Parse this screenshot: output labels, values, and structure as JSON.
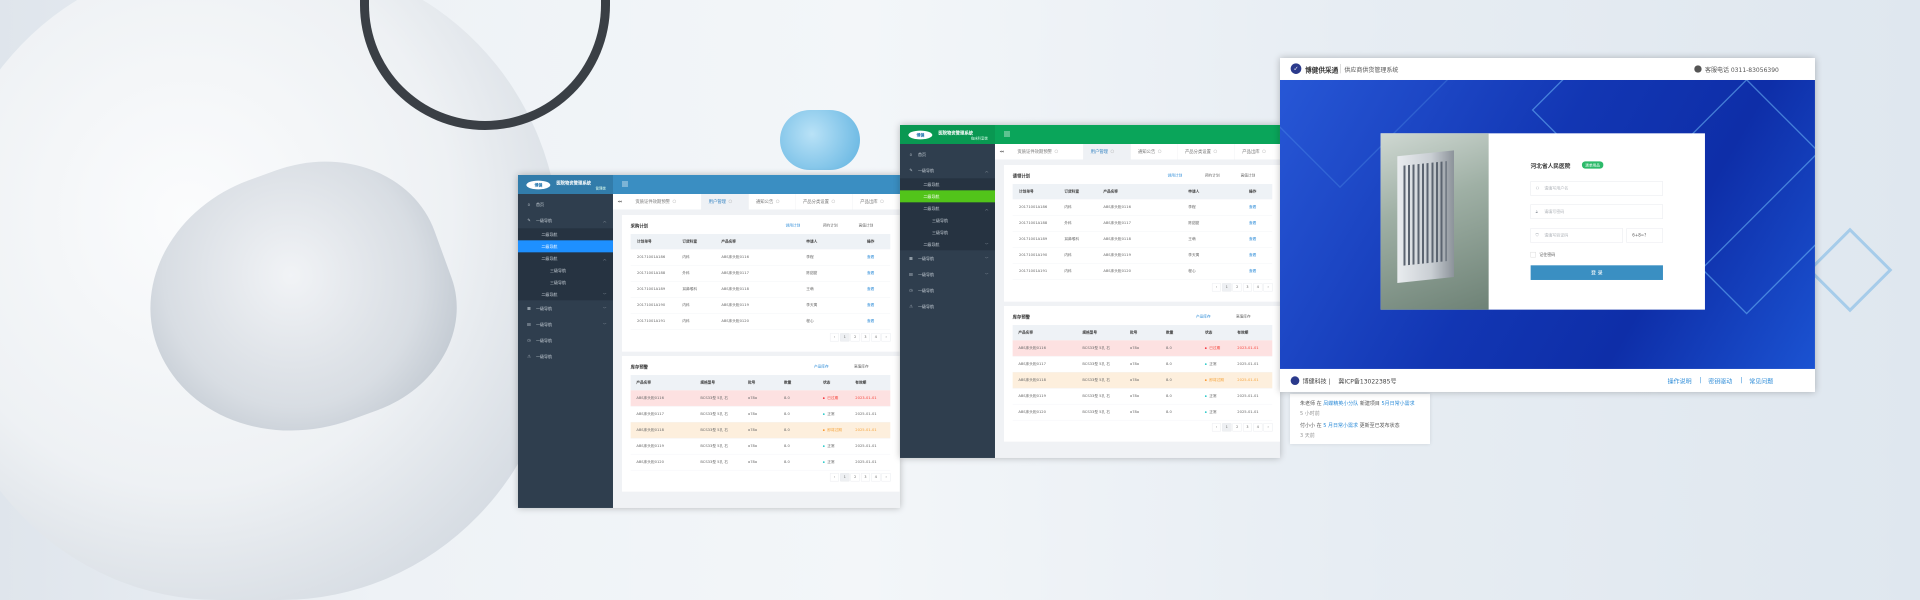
{
  "colors": {
    "blue_theme": "#3a8ec2",
    "green_theme": "#0aa55a",
    "green_active": "#52c41a",
    "blue_active": "#1e90ff",
    "sidebar": "#2f3e4e",
    "login_blue": "#1236b3",
    "login_button": "#3a8fc2"
  },
  "admin_panels": [
    {
      "theme": "blue",
      "logo_mark": "博健",
      "title": "医院物资管理系统",
      "subtitle": "管理端",
      "sidebar": [
        {
          "icon": "home-icon",
          "label": "首页",
          "level": 1
        },
        {
          "icon": "edit-icon",
          "label": "一级导航",
          "level": 1,
          "arrow": "up"
        },
        {
          "label": "二级导航",
          "level": 2
        },
        {
          "label": "二级导航",
          "level": 2,
          "active": true
        },
        {
          "label": "二级导航",
          "level": 2,
          "arrow": "up"
        },
        {
          "label": "三级导航",
          "level": 3
        },
        {
          "label": "三级导航",
          "level": 3
        },
        {
          "label": "二级导航",
          "level": 2,
          "arrow": "down"
        },
        {
          "icon": "grid-icon",
          "label": "一级导航",
          "level": 1,
          "arrow": "down"
        },
        {
          "icon": "table-icon",
          "label": "一级导航",
          "level": 1,
          "arrow": "down"
        },
        {
          "icon": "clock-icon",
          "label": "一级导航",
          "level": 1
        },
        {
          "icon": "warning-icon",
          "label": "一级导航",
          "level": 1
        }
      ],
      "tabs": [
        {
          "label": "资质证件效期预警"
        },
        {
          "label": "用户管理",
          "active": true
        },
        {
          "label": "通知公告"
        },
        {
          "label": "产品分类设置"
        },
        {
          "label": "产品出库"
        }
      ],
      "plan": {
        "title": "采购计划",
        "links": [
          "领用计划",
          "预约计划",
          "高值计划"
        ],
        "columns": [
          "计划单号",
          "订货科室",
          "产品名称",
          "申请人",
          "操作"
        ],
        "rows": [
          [
            "20171001A186",
            "内科",
            "ABS床头柜0116",
            "李程",
            "查看"
          ],
          [
            "20171001A188",
            "外科",
            "ABS床头柜0117",
            "陈甜甜",
            "查看"
          ],
          [
            "20171001A189",
            "耳鼻喉科",
            "ABS床头柜0118",
            "王萌",
            "查看"
          ],
          [
            "20171001A190",
            "内科",
            "ABS床头柜0119",
            "李天寓",
            "查看"
          ],
          [
            "20171001A191",
            "内科",
            "ABS床头柜0120",
            "程心",
            "查看"
          ]
        ]
      },
      "stock": {
        "title": "库存预警",
        "links": [
          "产品库存",
          "高值库存"
        ],
        "columns": [
          "产品名称",
          "规格型号",
          "批号",
          "数量",
          "状态",
          "有效期"
        ],
        "rows": [
          {
            "cells": [
              "ABS床头柜0116",
              "BCS33型 5孔 右",
              "o78o",
              "8.0",
              "已过期",
              "2023-01-01"
            ],
            "level": "expired"
          },
          {
            "cells": [
              "ABS床头柜0117",
              "BCS33型 5孔 右",
              "o78o",
              "8.0",
              "正常",
              "2025-01-01"
            ],
            "level": "normal"
          },
          {
            "cells": [
              "ABS床头柜0118",
              "BCS33型 5孔 右",
              "o78o",
              "8.0",
              "即将过期",
              "2025-01-01"
            ],
            "level": "expiring"
          },
          {
            "cells": [
              "ABS床头柜0119",
              "BCS33型 5孔 右",
              "o78o",
              "8.0",
              "正常",
              "2025-01-01"
            ],
            "level": "normal"
          },
          {
            "cells": [
              "ABS床头柜0120",
              "BCS33型 5孔 右",
              "o78o",
              "8.0",
              "正常",
              "2025-01-01"
            ],
            "level": "normal"
          }
        ]
      },
      "pagination": [
        "‹",
        "1",
        "2",
        "3",
        "4",
        "›"
      ]
    },
    {
      "theme": "green",
      "logo_mark": "博健",
      "title": "医院物资管理系统",
      "subtitle": "临床科室端",
      "sidebar": [
        {
          "icon": "home-icon",
          "label": "首页",
          "level": 1
        },
        {
          "icon": "edit-icon",
          "label": "一级导航",
          "level": 1,
          "arrow": "up"
        },
        {
          "label": "二级导航",
          "level": 2
        },
        {
          "label": "二级导航",
          "level": 2,
          "active": true
        },
        {
          "label": "二级导航",
          "level": 2,
          "arrow": "up"
        },
        {
          "label": "三级导航",
          "level": 3
        },
        {
          "label": "三级导航",
          "level": 3
        },
        {
          "label": "二级导航",
          "level": 2,
          "arrow": "down"
        },
        {
          "icon": "grid-icon",
          "label": "一级导航",
          "level": 1,
          "arrow": "down"
        },
        {
          "icon": "table-icon",
          "label": "一级导航",
          "level": 1,
          "arrow": "down"
        },
        {
          "icon": "clock-icon",
          "label": "一级导航",
          "level": 1
        },
        {
          "icon": "warning-icon",
          "label": "一级导航",
          "level": 1
        }
      ],
      "tabs": [
        {
          "label": "资质证件效期预警"
        },
        {
          "label": "用户管理",
          "active": true
        },
        {
          "label": "通知公告"
        },
        {
          "label": "产品分类设置"
        },
        {
          "label": "产品出库"
        }
      ],
      "plan": {
        "title": "请领计划",
        "links": [
          "领用计划",
          "预约计划",
          "高值计划"
        ],
        "columns": [
          "计划单号",
          "订货科室",
          "产品名称",
          "申请人",
          "操作"
        ],
        "rows": [
          [
            "20171001A186",
            "内科",
            "ABS床头柜0116",
            "李程",
            "查看"
          ],
          [
            "20171001A188",
            "外科",
            "ABS床头柜0117",
            "陈甜甜",
            "查看"
          ],
          [
            "20171001A189",
            "耳鼻喉科",
            "ABS床头柜0118",
            "王萌",
            "查看"
          ],
          [
            "20171001A190",
            "内科",
            "ABS床头柜0119",
            "李天寓",
            "查看"
          ],
          [
            "20171001A191",
            "内科",
            "ABS床头柜0120",
            "程心",
            "查看"
          ]
        ]
      },
      "stock": {
        "title": "库存预警",
        "links": [
          "产品库存",
          "高值库存"
        ],
        "columns": [
          "产品名称",
          "规格型号",
          "批号",
          "数量",
          "状态",
          "有效期"
        ],
        "rows": [
          {
            "cells": [
              "ABS床头柜0116",
              "BCS33型 5孔 右",
              "o78o",
              "8.0",
              "已过期",
              "2023-01-01"
            ],
            "level": "expired"
          },
          {
            "cells": [
              "ABS床头柜0117",
              "BCS33型 5孔 右",
              "o78o",
              "8.0",
              "正常",
              "2025-01-01"
            ],
            "level": "normal"
          },
          {
            "cells": [
              "ABS床头柜0118",
              "BCS33型 5孔 右",
              "o78o",
              "8.0",
              "即将过期",
              "2025-01-01"
            ],
            "level": "expiring"
          },
          {
            "cells": [
              "ABS床头柜0119",
              "BCS33型 5孔 右",
              "o78o",
              "8.0",
              "正常",
              "2025-01-01"
            ],
            "level": "normal"
          },
          {
            "cells": [
              "ABS床头柜0120",
              "BCS33型 5孔 右",
              "o78o",
              "8.0",
              "正常",
              "2025-01-01"
            ],
            "level": "normal"
          }
        ]
      },
      "pagination": [
        "‹",
        "1",
        "2",
        "3",
        "4",
        "›"
      ]
    }
  ],
  "login": {
    "brand": "博健供采通",
    "system": "供应商供货管理系统",
    "hotline": "客服电话 0311-83056390",
    "hospital": "河北省人民医院",
    "badge": "清单用品",
    "username_placeholder": "请填写用户名",
    "password_placeholder": "请填写密码",
    "captcha_placeholder": "请填写验证码",
    "captcha": "6+8=?",
    "remember": "记住密码",
    "submit": "登 录",
    "footer_company": "博健科技 |",
    "footer_icp": "冀ICP备13022385号",
    "footer_links": [
      "操作说明",
      "密钥驱动",
      "常见问题"
    ]
  },
  "activity": [
    {
      "user": "朱老师",
      "in": "在",
      "group": "凤蝶精英小分队",
      "action": "新建项目",
      "target": "5月日常小需求",
      "time": "5 小时前"
    },
    {
      "user": "付小小",
      "in": "在",
      "group": "5 月日常小需求",
      "action": "更新至已发布状态",
      "target": "",
      "time": "3 天前"
    }
  ]
}
